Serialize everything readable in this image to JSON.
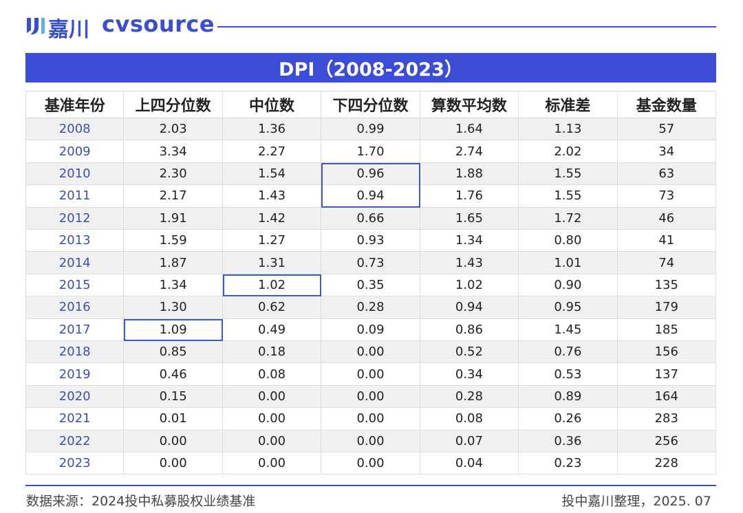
{
  "header": {
    "logo_cn": "嘉川",
    "logo_en": "cvsource"
  },
  "table": {
    "title": "DPI（2008-2023）",
    "columns": [
      "基准年份",
      "上四分位数",
      "中位数",
      "下四分位数",
      "算数平均数",
      "标准差",
      "基金数量"
    ],
    "rows": [
      [
        "2008",
        "2.03",
        "1.36",
        "0.99",
        "1.64",
        "1.13",
        "57"
      ],
      [
        "2009",
        "3.34",
        "2.27",
        "1.70",
        "2.74",
        "2.02",
        "34"
      ],
      [
        "2010",
        "2.30",
        "1.54",
        "0.96",
        "1.88",
        "1.55",
        "63"
      ],
      [
        "2011",
        "2.17",
        "1.43",
        "0.94",
        "1.76",
        "1.55",
        "73"
      ],
      [
        "2012",
        "1.91",
        "1.42",
        "0.66",
        "1.65",
        "1.72",
        "46"
      ],
      [
        "2013",
        "1.59",
        "1.27",
        "0.93",
        "1.34",
        "0.80",
        "41"
      ],
      [
        "2014",
        "1.87",
        "1.31",
        "0.73",
        "1.43",
        "1.01",
        "74"
      ],
      [
        "2015",
        "1.34",
        "1.02",
        "0.35",
        "1.02",
        "0.90",
        "135"
      ],
      [
        "2016",
        "1.30",
        "0.62",
        "0.28",
        "0.94",
        "0.95",
        "179"
      ],
      [
        "2017",
        "1.09",
        "0.49",
        "0.09",
        "0.86",
        "1.45",
        "185"
      ],
      [
        "2018",
        "0.85",
        "0.18",
        "0.00",
        "0.52",
        "0.76",
        "156"
      ],
      [
        "2019",
        "0.46",
        "0.08",
        "0.00",
        "0.34",
        "0.53",
        "137"
      ],
      [
        "2020",
        "0.15",
        "0.00",
        "0.00",
        "0.28",
        "0.89",
        "164"
      ],
      [
        "2021",
        "0.01",
        "0.00",
        "0.00",
        "0.08",
        "0.26",
        "283"
      ],
      [
        "2022",
        "0.00",
        "0.00",
        "0.00",
        "0.07",
        "0.36",
        "256"
      ],
      [
        "2023",
        "0.00",
        "0.00",
        "0.00",
        "0.04",
        "0.23",
        "228"
      ]
    ]
  },
  "footer": {
    "source": "数据来源：2024投中私募股权业绩基准",
    "credit": "投中嘉川整理，2025. 07"
  }
}
